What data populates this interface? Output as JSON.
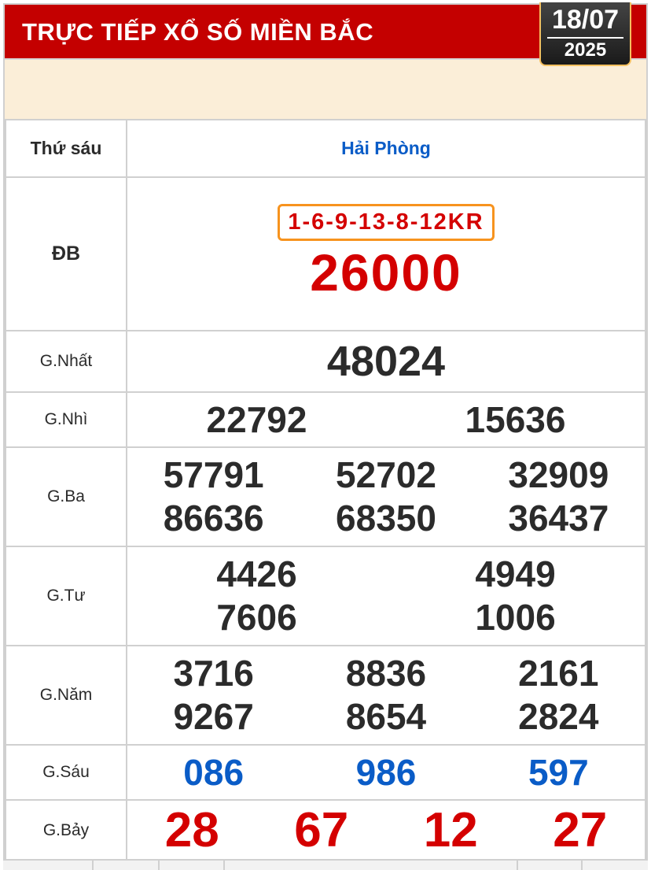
{
  "header": {
    "title": "TRỰC TIẾP XỔ SỐ MIỀN BẮC",
    "date": "18/07",
    "year": "2025"
  },
  "table": {
    "day": "Thứ sáu",
    "province": "Hải Phòng",
    "db": {
      "label": "ĐB",
      "code": "1-6-9-13-8-12KR",
      "value": "26000"
    },
    "prizes": [
      {
        "label": "G.Nhất",
        "values": [
          "48024"
        ]
      },
      {
        "label": "G.Nhì",
        "values": [
          "22792",
          "15636"
        ]
      },
      {
        "label": "G.Ba",
        "values": [
          "57791",
          "52702",
          "32909",
          "86636",
          "68350",
          "36437"
        ]
      },
      {
        "label": "G.Tư",
        "values": [
          "4426",
          "4949",
          "7606",
          "1006"
        ]
      },
      {
        "label": "G.Năm",
        "values": [
          "3716",
          "8836",
          "2161",
          "9267",
          "8654",
          "2824"
        ]
      },
      {
        "label": "G.Sáu",
        "values": [
          "086",
          "986",
          "597"
        ]
      },
      {
        "label": "G.Bảy",
        "values": [
          "28",
          "67",
          "12",
          "27"
        ]
      }
    ]
  },
  "colors": {
    "header": "#c40000",
    "blue": "#0a5cc7",
    "red": "#d40000",
    "code_border": "#f7931e"
  }
}
